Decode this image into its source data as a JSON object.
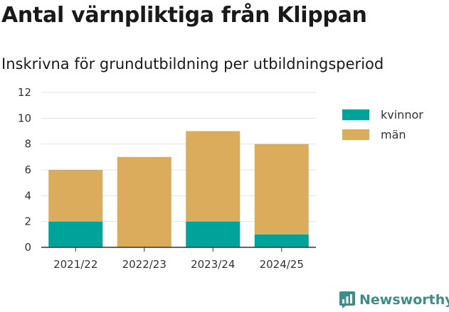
{
  "chart_data": {
    "type": "bar",
    "stacked": true,
    "title": "Antal värnpliktiga från Klippan",
    "subtitle": "Inskrivna för grundutbildning per utbildningsperiod",
    "categories": [
      "2021/22",
      "2022/23",
      "2023/24",
      "2024/25"
    ],
    "series": [
      {
        "name": "kvinnor",
        "color": "#00a39a",
        "values": [
          2,
          0,
          2,
          1
        ]
      },
      {
        "name": "män",
        "color": "#dbac5c",
        "values": [
          4,
          7,
          7,
          7
        ]
      }
    ],
    "ylim": [
      0,
      12
    ],
    "yticks": [
      0,
      2,
      4,
      6,
      8,
      10,
      12
    ],
    "grid": true,
    "legend_position": "right"
  },
  "brand": {
    "name": "Newsworthy",
    "icon": "newsworthy-logo-icon",
    "color": "#3a8f8b"
  }
}
